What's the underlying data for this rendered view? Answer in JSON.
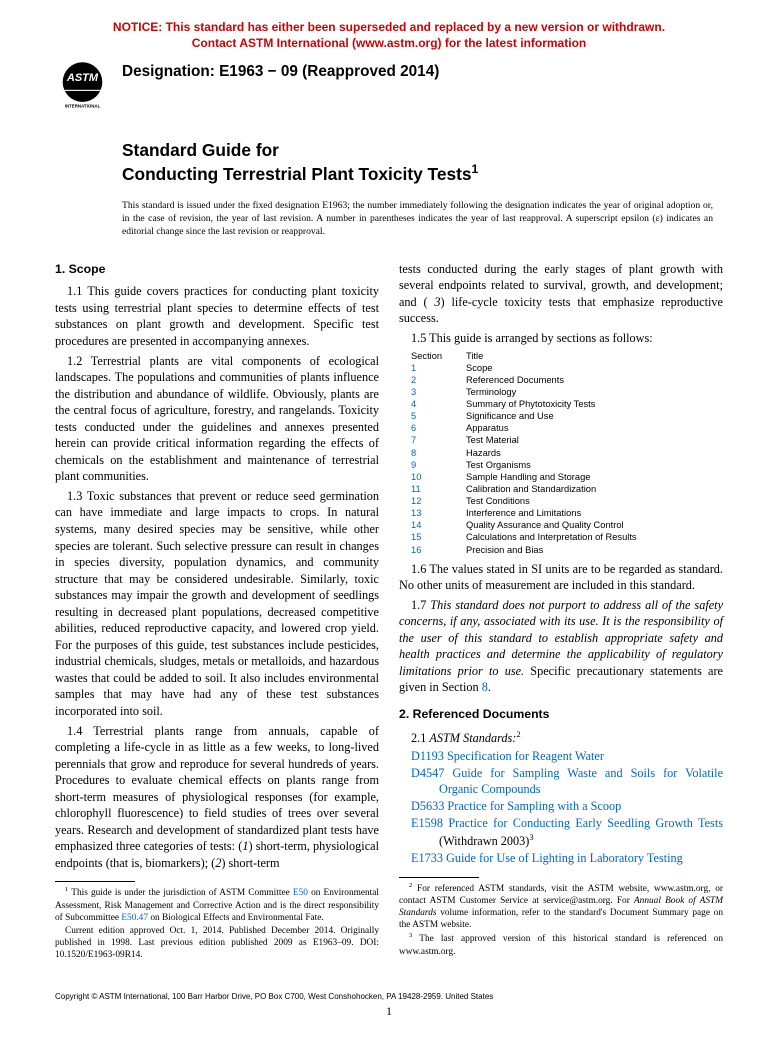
{
  "notice": {
    "line1": "NOTICE: This standard has either been superseded and replaced by a new version or withdrawn.",
    "line2": "Contact ASTM International (www.astm.org) for the latest information"
  },
  "designation": "Designation: E1963 − 09 (Reapproved 2014)",
  "title_line1": "Standard Guide for",
  "title_line2": "Conducting Terrestrial Plant Toxicity Tests",
  "title_sup": "1",
  "issuance": "This standard is issued under the fixed designation E1963; the number immediately following the designation indicates the year of original adoption or, in the case of revision, the year of last revision. A number in parentheses indicates the year of last reapproval. A superscript epsilon (ε) indicates an editorial change since the last revision or reapproval.",
  "col1": {
    "scope_head": "1. Scope",
    "p11": "1.1 This guide covers practices for conducting plant toxicity tests using terrestrial plant species to determine effects of test substances on plant growth and development. Specific test procedures are presented in accompanying annexes.",
    "p12": "1.2 Terrestrial plants are vital components of ecological landscapes. The populations and communities of plants influence the distribution and abundance of wildlife. Obviously, plants are the central focus of agriculture, forestry, and rangelands. Toxicity tests conducted under the guidelines and annexes presented herein can provide critical information regarding the effects of chemicals on the establishment and maintenance of terrestrial plant communities.",
    "p13": "1.3 Toxic substances that prevent or reduce seed germination can have immediate and large impacts to crops. In natural systems, many desired species may be sensitive, while other species are tolerant. Such selective pressure can result in changes in species diversity, population dynamics, and community structure that may be considered undesirable. Similarly, toxic substances may impair the growth and development of seedlings resulting in decreased plant populations, decreased competitive abilities, reduced reproductive capacity, and lowered crop yield. For the purposes of this guide, test substances include pesticides, industrial chemicals, sludges, metals or metalloids, and hazardous wastes that could be added to soil. It also includes environmental samples that may have had any of these test substances incorporated into soil.",
    "p14a": "1.4 Terrestrial plants range from annuals, capable of completing a life-cycle in as little as a few weeks, to long-lived perennials that grow and reproduce for several hundreds of years. Procedures to evaluate chemical effects on plants range from short-term measures of physiological responses (for example, chlorophyll fluorescence) to field studies of trees over several years. Research and development of standardized plant tests have emphasized three categories of tests: (",
    "p14b": "1",
    "p14c": ") short-term, physiological endpoints (that is, biomarkers); (",
    "p14d": "2",
    "p14e": ") short-term",
    "fn1a": " This guide is under the jurisdiction of ASTM Committee ",
    "fn1b": "E50",
    "fn1c": " on Environmental Assessment, Risk Management and Corrective Action and is the direct responsibility of Subcommittee ",
    "fn1d": "E50.47",
    "fn1e": " on Biological Effects and Environmental Fate.",
    "fn1_p2": "Current edition approved Oct. 1, 2014. Published December 2014. Originally published in 1998. Last previous edition published 2009 as E1963–09. DOI: 10.1520/E1963-09R14."
  },
  "col2": {
    "p14cont_a": "tests conducted during the early stages of plant growth with several endpoints related to survival, growth, and development; and (",
    "p14cont_b": " 3",
    "p14cont_c": ") life-cycle toxicity tests that emphasize reproductive success.",
    "p15": "1.5 This guide is arranged by sections as follows:",
    "toc_head_sec": "Section",
    "toc_head_title": "Title",
    "toc": [
      {
        "s": "1",
        "t": "Scope"
      },
      {
        "s": "2",
        "t": "Referenced Documents"
      },
      {
        "s": "3",
        "t": "Terminology"
      },
      {
        "s": "4",
        "t": "Summary of Phytotoxicity Tests"
      },
      {
        "s": "5",
        "t": "Significance and Use"
      },
      {
        "s": "6",
        "t": "Apparatus"
      },
      {
        "s": "7",
        "t": "Test Material"
      },
      {
        "s": "8",
        "t": "Hazards"
      },
      {
        "s": "9",
        "t": "Test Organisms"
      },
      {
        "s": "10",
        "t": "Sample Handling and Storage"
      },
      {
        "s": "11",
        "t": "Calibration and Standardization"
      },
      {
        "s": "12",
        "t": "Test Conditions"
      },
      {
        "s": "13",
        "t": "Interference and Limitations"
      },
      {
        "s": "14",
        "t": "Quality Assurance and Quality Control"
      },
      {
        "s": "15",
        "t": "Calculations and Interpretation of Results"
      },
      {
        "s": "16",
        "t": "Precision and Bias"
      }
    ],
    "p16": "1.6 The values stated in SI units are to be regarded as standard. No other units of measurement are included in this standard.",
    "p17a": "1.7 ",
    "p17b": "This standard does not purport to address all of the safety concerns, if any, associated with its use. It is the responsibility of the user of this standard to establish appropriate safety and health practices and determine the applicability of regulatory limitations prior to use.",
    "p17c": " Specific precautionary statements are given in Section ",
    "p17d": "8",
    "p17e": ".",
    "refs_head": "2. Referenced Documents",
    "refs_21a": "2.1 ",
    "refs_21b": "ASTM Standards:",
    "refs_21c": "2",
    "refs": [
      {
        "code": "D1193",
        "title": "Specification for Reagent Water",
        "extra": ""
      },
      {
        "code": "D4547",
        "title": "Guide for Sampling Waste and Soils for Volatile Organic Compounds",
        "extra": ""
      },
      {
        "code": "D5633",
        "title": "Practice for Sampling with a Scoop",
        "extra": ""
      },
      {
        "code": "E1598",
        "title": "Practice for Conducting Early Seedling Growth Tests",
        "extra": " (Withdrawn 2003)",
        "sup": "3"
      },
      {
        "code": "E1733",
        "title": "Guide for Use of Lighting in Laboratory Testing",
        "extra": ""
      }
    ],
    "fn2a": " For referenced ASTM standards, visit the ASTM website, www.astm.org, or contact ASTM Customer Service at service@astm.org. For ",
    "fn2b": "Annual Book of ASTM Standards",
    "fn2c": " volume information, refer to the standard's Document Summary page on the ASTM website.",
    "fn3": " The last approved version of this historical standard is referenced on www.astm.org."
  },
  "copyright": "Copyright © ASTM International, 100 Barr Harbor Drive, PO Box C700, West Conshohocken, PA 19428-2959. United States",
  "pagenum": "1"
}
